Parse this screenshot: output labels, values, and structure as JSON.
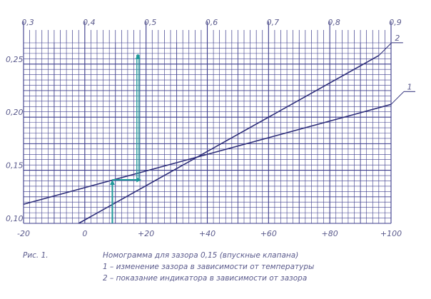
{
  "chart_data": {
    "type": "line",
    "title": "",
    "xlabel": "",
    "ylabel": "",
    "bottom_axis": {
      "range": [
        -20,
        100
      ],
      "ticks": [
        -20,
        0,
        20,
        40,
        60,
        80,
        100
      ],
      "tick_labels": [
        "-20",
        "0",
        "+20",
        "+40",
        "+60",
        "+80",
        "+100"
      ]
    },
    "top_axis": {
      "range": [
        0.3,
        0.9
      ],
      "ticks": [
        0.3,
        0.4,
        0.5,
        0.6,
        0.7,
        0.8,
        0.9
      ],
      "tick_labels": [
        "0,3",
        "0,4",
        "0,5",
        "0,6",
        "0,7",
        "0,8",
        "0,9"
      ]
    },
    "left_axis": {
      "range": [
        0.1,
        0.27
      ],
      "ticks": [
        0.1,
        0.15,
        0.2,
        0.25
      ],
      "tick_labels": [
        "0,10",
        "0,15",
        "0,20",
        "0,25"
      ]
    },
    "series": [
      {
        "name": "1",
        "axis_x": "bottom",
        "points": [
          [
            -20,
            0.118
          ],
          [
            100,
            0.212
          ]
        ]
      },
      {
        "name": "2",
        "axis_x": "top",
        "points": [
          [
            0.39,
            0.1
          ],
          [
            0.88,
            0.258
          ]
        ]
      }
    ],
    "construction_path": {
      "points_bottom_axis": [
        [
          9,
          0.1
        ],
        [
          9,
          0.141
        ]
      ],
      "points_shared": [
        [
          9,
          0.141
        ],
        [
          18.5,
          0.141
        ]
      ],
      "points_top_axis": [
        [
          0.485,
          0.141
        ],
        [
          0.485,
          0.26
        ]
      ]
    },
    "grid": true,
    "colors": {
      "grid": "#3a3a8a",
      "lines": "#2e2e7a",
      "construction": "#1f9a9a",
      "labels": "#5a5a8c"
    }
  },
  "caption": {
    "fig_label": "Рис. 1.",
    "title": "Номограмма для зазора 0,15 (впускные клапана)",
    "line1": "1 – изменение зазора в зависимости от температуры",
    "line2": "2 – показание индикатора в зависимости от зазора"
  }
}
